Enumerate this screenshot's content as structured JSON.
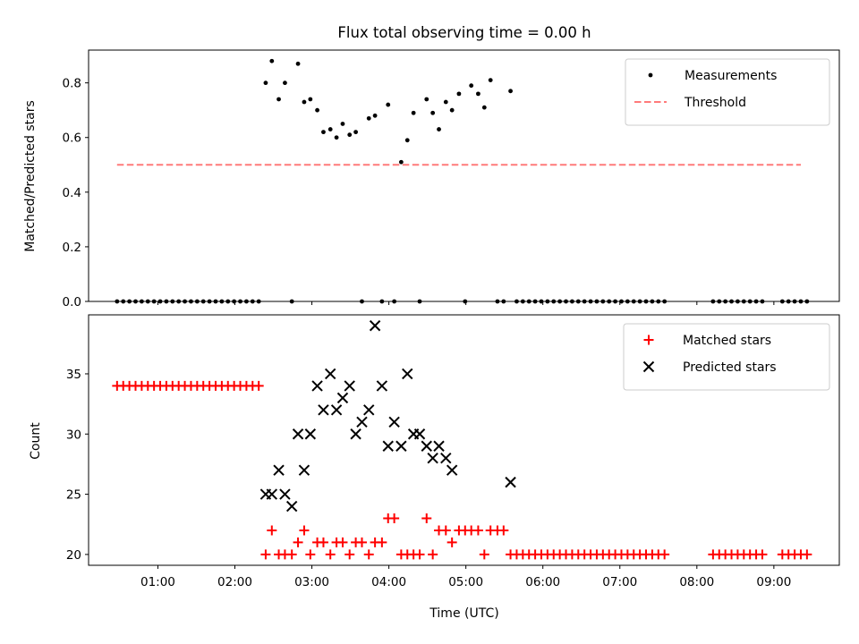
{
  "chart_data": [
    {
      "type": "scatter",
      "title": "Flux total observing time = 0.00 h",
      "xlabel": "",
      "ylabel": "Matched/Predicted stars",
      "x_unit": "hours (UTC)",
      "xlim": [
        0.1,
        9.85
      ],
      "ylim": [
        0,
        0.92
      ],
      "yticks": [
        0.0,
        0.2,
        0.4,
        0.6,
        0.8
      ],
      "ytick_labels": [
        "0.0",
        "0.2",
        "0.4",
        "0.6",
        "0.8"
      ],
      "xticks": [
        1,
        2,
        3,
        4,
        5,
        6,
        7,
        8,
        9
      ],
      "show_xtick_labels": false,
      "legend": "upper right",
      "series": [
        {
          "name": "Measurements",
          "style": "dot",
          "color": "#000000",
          "points": [
            [
              0.47,
              0
            ],
            [
              0.55,
              0
            ],
            [
              0.63,
              0
            ],
            [
              0.71,
              0
            ],
            [
              0.79,
              0
            ],
            [
              0.87,
              0
            ],
            [
              0.95,
              0
            ],
            [
              1.03,
              0
            ],
            [
              1.11,
              0
            ],
            [
              1.19,
              0
            ],
            [
              1.27,
              0
            ],
            [
              1.35,
              0
            ],
            [
              1.43,
              0
            ],
            [
              1.51,
              0
            ],
            [
              1.59,
              0
            ],
            [
              1.67,
              0
            ],
            [
              1.75,
              0
            ],
            [
              1.83,
              0
            ],
            [
              1.91,
              0
            ],
            [
              1.99,
              0
            ],
            [
              2.07,
              0
            ],
            [
              2.15,
              0
            ],
            [
              2.23,
              0
            ],
            [
              2.31,
              0
            ],
            [
              2.4,
              0.8
            ],
            [
              2.48,
              0.88
            ],
            [
              2.57,
              0.74
            ],
            [
              2.65,
              0.8
            ],
            [
              2.74,
              0
            ],
            [
              2.82,
              0.87
            ],
            [
              2.9,
              0.73
            ],
            [
              2.98,
              0.74
            ],
            [
              3.07,
              0.7
            ],
            [
              3.15,
              0.62
            ],
            [
              3.24,
              0.63
            ],
            [
              3.32,
              0.6
            ],
            [
              3.4,
              0.65
            ],
            [
              3.49,
              0.61
            ],
            [
              3.57,
              0.62
            ],
            [
              3.65,
              0
            ],
            [
              3.74,
              0.67
            ],
            [
              3.82,
              0.68
            ],
            [
              3.91,
              0
            ],
            [
              3.99,
              0.72
            ],
            [
              4.07,
              0
            ],
            [
              4.16,
              0.51
            ],
            [
              4.24,
              0.59
            ],
            [
              4.32,
              0.69
            ],
            [
              4.4,
              0
            ],
            [
              4.49,
              0.74
            ],
            [
              4.57,
              0.69
            ],
            [
              4.65,
              0.63
            ],
            [
              4.74,
              0.73
            ],
            [
              4.82,
              0.7
            ],
            [
              4.91,
              0.76
            ],
            [
              4.99,
              0
            ],
            [
              5.07,
              0.79
            ],
            [
              5.16,
              0.76
            ],
            [
              5.24,
              0.71
            ],
            [
              5.32,
              0.81
            ],
            [
              5.41,
              0
            ],
            [
              5.49,
              0
            ],
            [
              5.58,
              0.77
            ],
            [
              5.66,
              0
            ],
            [
              5.74,
              0
            ],
            [
              5.82,
              0
            ],
            [
              5.9,
              0
            ],
            [
              5.98,
              0
            ],
            [
              6.06,
              0
            ],
            [
              6.14,
              0
            ],
            [
              6.22,
              0
            ],
            [
              6.3,
              0
            ],
            [
              6.38,
              0
            ],
            [
              6.46,
              0
            ],
            [
              6.54,
              0
            ],
            [
              6.62,
              0
            ],
            [
              6.7,
              0
            ],
            [
              6.78,
              0
            ],
            [
              6.86,
              0
            ],
            [
              6.94,
              0
            ],
            [
              7.02,
              0
            ],
            [
              7.1,
              0
            ],
            [
              7.18,
              0
            ],
            [
              7.26,
              0
            ],
            [
              7.34,
              0
            ],
            [
              7.42,
              0
            ],
            [
              7.5,
              0
            ],
            [
              7.58,
              0
            ],
            [
              8.21,
              0
            ],
            [
              8.29,
              0
            ],
            [
              8.37,
              0
            ],
            [
              8.45,
              0
            ],
            [
              8.53,
              0
            ],
            [
              8.61,
              0
            ],
            [
              8.69,
              0
            ],
            [
              8.77,
              0
            ],
            [
              8.85,
              0
            ],
            [
              9.11,
              0
            ],
            [
              9.19,
              0
            ],
            [
              9.27,
              0
            ],
            [
              9.35,
              0
            ],
            [
              9.43,
              0
            ]
          ]
        },
        {
          "name": "Threshold",
          "style": "dashed-line",
          "color": "#ff7a7a",
          "points": [
            [
              0.47,
              0.5
            ],
            [
              9.35,
              0.5
            ]
          ]
        }
      ]
    },
    {
      "type": "scatter",
      "title": "",
      "xlabel": "Time (UTC)",
      "ylabel": "Count",
      "x_unit": "hours (UTC)",
      "xlim": [
        0.1,
        9.85
      ],
      "ylim": [
        19.1,
        39.9
      ],
      "yticks": [
        20,
        25,
        30,
        35
      ],
      "ytick_labels": [
        "20",
        "25",
        "30",
        "35"
      ],
      "xticks": [
        1,
        2,
        3,
        4,
        5,
        6,
        7,
        8,
        9
      ],
      "xtick_labels": [
        "01:00",
        "02:00",
        "03:00",
        "04:00",
        "05:00",
        "06:00",
        "07:00",
        "08:00",
        "09:00"
      ],
      "legend": "upper right",
      "series": [
        {
          "name": "Matched stars",
          "style": "plus",
          "color": "#ff0000",
          "points": [
            [
              0.47,
              34
            ],
            [
              0.55,
              34
            ],
            [
              0.63,
              34
            ],
            [
              0.71,
              34
            ],
            [
              0.79,
              34
            ],
            [
              0.87,
              34
            ],
            [
              0.95,
              34
            ],
            [
              1.03,
              34
            ],
            [
              1.11,
              34
            ],
            [
              1.19,
              34
            ],
            [
              1.27,
              34
            ],
            [
              1.35,
              34
            ],
            [
              1.43,
              34
            ],
            [
              1.51,
              34
            ],
            [
              1.59,
              34
            ],
            [
              1.67,
              34
            ],
            [
              1.75,
              34
            ],
            [
              1.83,
              34
            ],
            [
              1.91,
              34
            ],
            [
              1.99,
              34
            ],
            [
              2.07,
              34
            ],
            [
              2.15,
              34
            ],
            [
              2.23,
              34
            ],
            [
              2.31,
              34
            ],
            [
              2.4,
              20
            ],
            [
              2.48,
              22
            ],
            [
              2.57,
              20
            ],
            [
              2.65,
              20
            ],
            [
              2.74,
              20
            ],
            [
              2.82,
              21
            ],
            [
              2.9,
              22
            ],
            [
              2.98,
              20
            ],
            [
              3.07,
              21
            ],
            [
              3.15,
              21
            ],
            [
              3.24,
              20
            ],
            [
              3.32,
              21
            ],
            [
              3.4,
              21
            ],
            [
              3.49,
              20
            ],
            [
              3.57,
              21
            ],
            [
              3.65,
              21
            ],
            [
              3.74,
              20
            ],
            [
              3.82,
              21
            ],
            [
              3.91,
              21
            ],
            [
              3.99,
              23
            ],
            [
              4.07,
              23
            ],
            [
              4.16,
              20
            ],
            [
              4.24,
              20
            ],
            [
              4.32,
              20
            ],
            [
              4.4,
              20
            ],
            [
              4.49,
              23
            ],
            [
              4.57,
              20
            ],
            [
              4.65,
              22
            ],
            [
              4.74,
              22
            ],
            [
              4.82,
              21
            ],
            [
              4.91,
              22
            ],
            [
              4.99,
              22
            ],
            [
              5.07,
              22
            ],
            [
              5.16,
              22
            ],
            [
              5.24,
              20
            ],
            [
              5.32,
              22
            ],
            [
              5.41,
              22
            ],
            [
              5.49,
              22
            ],
            [
              5.58,
              20
            ],
            [
              5.66,
              20
            ],
            [
              5.74,
              20
            ],
            [
              5.82,
              20
            ],
            [
              5.9,
              20
            ],
            [
              5.98,
              20
            ],
            [
              6.06,
              20
            ],
            [
              6.14,
              20
            ],
            [
              6.22,
              20
            ],
            [
              6.3,
              20
            ],
            [
              6.38,
              20
            ],
            [
              6.46,
              20
            ],
            [
              6.54,
              20
            ],
            [
              6.62,
              20
            ],
            [
              6.7,
              20
            ],
            [
              6.78,
              20
            ],
            [
              6.86,
              20
            ],
            [
              6.94,
              20
            ],
            [
              7.02,
              20
            ],
            [
              7.1,
              20
            ],
            [
              7.18,
              20
            ],
            [
              7.26,
              20
            ],
            [
              7.34,
              20
            ],
            [
              7.42,
              20
            ],
            [
              7.5,
              20
            ],
            [
              7.58,
              20
            ],
            [
              8.21,
              20
            ],
            [
              8.29,
              20
            ],
            [
              8.37,
              20
            ],
            [
              8.45,
              20
            ],
            [
              8.53,
              20
            ],
            [
              8.61,
              20
            ],
            [
              8.69,
              20
            ],
            [
              8.77,
              20
            ],
            [
              8.85,
              20
            ],
            [
              9.11,
              20
            ],
            [
              9.19,
              20
            ],
            [
              9.27,
              20
            ],
            [
              9.35,
              20
            ],
            [
              9.43,
              20
            ]
          ]
        },
        {
          "name": "Predicted stars",
          "style": "x",
          "color": "#000000",
          "points": [
            [
              2.4,
              25
            ],
            [
              2.48,
              25
            ],
            [
              2.57,
              27
            ],
            [
              2.65,
              25
            ],
            [
              2.74,
              24
            ],
            [
              2.82,
              30
            ],
            [
              2.9,
              27
            ],
            [
              2.98,
              30
            ],
            [
              3.07,
              34
            ],
            [
              3.15,
              32
            ],
            [
              3.24,
              35
            ],
            [
              3.32,
              32
            ],
            [
              3.4,
              33
            ],
            [
              3.49,
              34
            ],
            [
              3.57,
              30
            ],
            [
              3.65,
              31
            ],
            [
              3.74,
              32
            ],
            [
              3.82,
              39
            ],
            [
              3.91,
              34
            ],
            [
              3.99,
              29
            ],
            [
              4.07,
              31
            ],
            [
              4.16,
              29
            ],
            [
              4.24,
              35
            ],
            [
              4.32,
              30
            ],
            [
              4.4,
              30
            ],
            [
              4.49,
              29
            ],
            [
              4.57,
              28
            ],
            [
              4.65,
              29
            ],
            [
              4.74,
              28
            ],
            [
              4.82,
              27
            ],
            [
              5.58,
              26
            ]
          ]
        }
      ]
    }
  ]
}
